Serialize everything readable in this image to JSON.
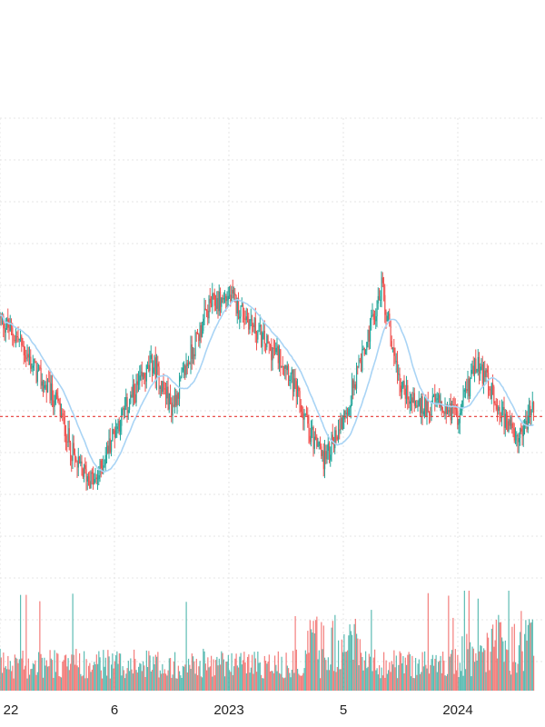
{
  "chart_data": {
    "type": "candlestick",
    "x_tick_labels": [
      "22",
      "6",
      "2023",
      "5",
      "2024"
    ],
    "x_tick_months": [
      0,
      6,
      12,
      18,
      24
    ],
    "price_ylim": [
      0,
      100
    ],
    "reference_line_value": 33,
    "price_series_monthly_approx": [
      {
        "month": 0,
        "value": 55
      },
      {
        "month": 1,
        "value": 50
      },
      {
        "month": 2,
        "value": 42
      },
      {
        "month": 3,
        "value": 36
      },
      {
        "month": 4,
        "value": 22
      },
      {
        "month": 5,
        "value": 18
      },
      {
        "month": 6,
        "value": 30
      },
      {
        "month": 7,
        "value": 38
      },
      {
        "month": 8,
        "value": 45
      },
      {
        "month": 9,
        "value": 35
      },
      {
        "month": 10,
        "value": 47
      },
      {
        "month": 11,
        "value": 58
      },
      {
        "month": 12,
        "value": 60
      },
      {
        "month": 13,
        "value": 55
      },
      {
        "month": 14,
        "value": 49
      },
      {
        "month": 15,
        "value": 45
      },
      {
        "month": 16,
        "value": 32
      },
      {
        "month": 17,
        "value": 23
      },
      {
        "month": 18,
        "value": 33
      },
      {
        "month": 19,
        "value": 46
      },
      {
        "month": 20,
        "value": 62
      },
      {
        "month": 21,
        "value": 40
      },
      {
        "month": 22,
        "value": 35
      },
      {
        "month": 23,
        "value": 36
      },
      {
        "month": 24,
        "value": 33
      },
      {
        "month": 25,
        "value": 45
      },
      {
        "month": 26,
        "value": 37
      },
      {
        "month": 27,
        "value": 27
      },
      {
        "month": 28,
        "value": 36
      }
    ],
    "moving_average_color": "#a9d4f5",
    "volume_relative_max": 1,
    "colors": {
      "up": "#26a69a",
      "down": "#ef5350",
      "reference_line": "#e53935",
      "grid": "#e6e6e6"
    },
    "grid": true
  }
}
